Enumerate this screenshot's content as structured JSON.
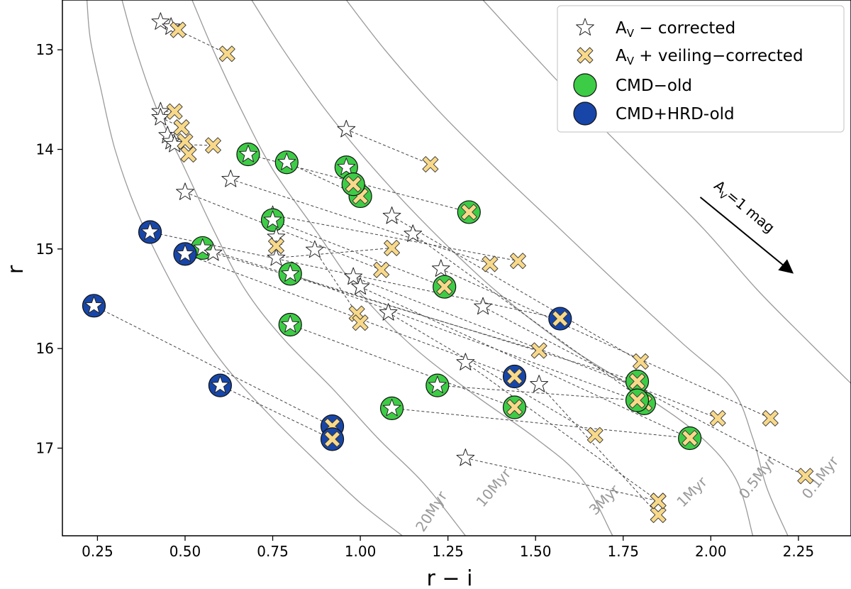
{
  "chart_data": {
    "type": "scatter",
    "xlabel": "r − i",
    "ylabel": "r",
    "xlim": [
      0.15,
      2.4
    ],
    "ylim": [
      17.88,
      12.5
    ],
    "xticks": [
      "0.25",
      "0.50",
      "0.75",
      "1.00",
      "1.25",
      "1.50",
      "1.75",
      "2.00",
      "2.25"
    ],
    "yticks": [
      "13",
      "14",
      "15",
      "16",
      "17"
    ],
    "colors": {
      "star_fill": "#ffffff",
      "veiling": "#f8d98a",
      "cmd_old": "#3dcc45",
      "cmd_hrd_old": "#1746a8",
      "isochrone": "#9a9a9a",
      "connector": "#444444"
    },
    "legend": {
      "position": "top-right",
      "entries": [
        {
          "key": "star",
          "prefix": "A",
          "sub": "V",
          "suffix": " − corrected"
        },
        {
          "key": "cross",
          "prefix": "A",
          "sub": "V",
          "suffix": " + veiling−corrected"
        },
        {
          "key": "cmd_old",
          "prefix": "CMD−old",
          "sub": "",
          "suffix": ""
        },
        {
          "key": "cmd_hrd_old",
          "prefix": "CMD+HRD-old",
          "sub": "",
          "suffix": ""
        }
      ]
    },
    "arrow": {
      "prefix": "A",
      "sub": "V",
      "suffix": "=1 mag",
      "from": [
        1.97,
        14.48
      ],
      "to": [
        2.23,
        15.23
      ]
    },
    "isochrones": [
      {
        "label": "20Myr",
        "points": [
          [
            0.22,
            12.5
          ],
          [
            0.23,
            12.9
          ],
          [
            0.26,
            13.4
          ],
          [
            0.3,
            14.0
          ],
          [
            0.36,
            14.6
          ],
          [
            0.44,
            15.2
          ],
          [
            0.52,
            15.7
          ],
          [
            0.62,
            16.2
          ],
          [
            0.75,
            16.7
          ],
          [
            0.88,
            17.15
          ],
          [
            1.0,
            17.55
          ],
          [
            1.12,
            17.88
          ]
        ]
      },
      {
        "label": "10Myr",
        "points": [
          [
            0.32,
            12.5
          ],
          [
            0.36,
            13.0
          ],
          [
            0.42,
            13.6
          ],
          [
            0.5,
            14.2
          ],
          [
            0.58,
            14.8
          ],
          [
            0.67,
            15.4
          ],
          [
            0.78,
            15.9
          ],
          [
            0.92,
            16.4
          ],
          [
            1.05,
            16.9
          ],
          [
            1.18,
            17.35
          ],
          [
            1.3,
            17.88
          ]
        ]
      },
      {
        "label": "3Myr",
        "points": [
          [
            0.52,
            12.5
          ],
          [
            0.58,
            13.0
          ],
          [
            0.66,
            13.6
          ],
          [
            0.75,
            14.2
          ],
          [
            0.87,
            14.8
          ],
          [
            0.99,
            15.4
          ],
          [
            1.14,
            15.95
          ],
          [
            1.32,
            16.45
          ],
          [
            1.5,
            16.9
          ],
          [
            1.63,
            17.3
          ],
          [
            1.72,
            17.88
          ]
        ]
      },
      {
        "label": "1Myr",
        "points": [
          [
            0.69,
            12.5
          ],
          [
            0.78,
            13.0
          ],
          [
            0.9,
            13.6
          ],
          [
            1.04,
            14.2
          ],
          [
            1.2,
            14.8
          ],
          [
            1.38,
            15.4
          ],
          [
            1.58,
            15.95
          ],
          [
            1.78,
            16.4
          ],
          [
            1.96,
            16.85
          ],
          [
            2.07,
            17.3
          ],
          [
            2.12,
            17.88
          ]
        ]
      },
      {
        "label": "0.5Myr",
        "points": [
          [
            0.96,
            12.5
          ],
          [
            1.07,
            13.0
          ],
          [
            1.22,
            13.6
          ],
          [
            1.39,
            14.2
          ],
          [
            1.57,
            14.8
          ],
          [
            1.75,
            15.4
          ],
          [
            1.92,
            15.95
          ],
          [
            2.06,
            16.4
          ],
          [
            2.12,
            16.9
          ],
          [
            2.16,
            17.4
          ],
          [
            2.22,
            17.88
          ]
        ]
      },
      {
        "label": "0.1Myr",
        "points": [
          [
            1.35,
            12.5
          ],
          [
            1.48,
            13.0
          ],
          [
            1.64,
            13.6
          ],
          [
            1.81,
            14.2
          ],
          [
            1.98,
            14.8
          ],
          [
            2.13,
            15.4
          ],
          [
            2.27,
            15.9
          ],
          [
            2.4,
            16.35
          ]
        ]
      }
    ],
    "isochrone_labels": [
      {
        "text": "20Myr",
        "x": 1.18,
        "y": 17.85,
        "rot": -57
      },
      {
        "text": "10Myr",
        "x": 1.35,
        "y": 17.6,
        "rot": -50
      },
      {
        "text": "3Myr",
        "x": 1.67,
        "y": 17.68,
        "rot": -45
      },
      {
        "text": "1Myr",
        "x": 1.92,
        "y": 17.6,
        "rot": -45
      },
      {
        "text": "0.5Myr",
        "x": 2.1,
        "y": 17.52,
        "rot": -52
      },
      {
        "text": "0.1Myr",
        "x": 2.28,
        "y": 17.52,
        "rot": -52
      }
    ],
    "stars": [
      {
        "sx": 0.43,
        "sy": 12.72,
        "cx": 0.48,
        "cy": 12.8,
        "c": "none"
      },
      {
        "sx": 0.46,
        "sy": 12.77,
        "cx": 0.62,
        "cy": 13.04,
        "c": "none"
      },
      {
        "sx": 0.43,
        "sy": 13.62,
        "cx": 0.47,
        "cy": 13.62,
        "c": "none"
      },
      {
        "sx": 0.43,
        "sy": 13.68,
        "cx": 0.49,
        "cy": 13.78,
        "c": "none"
      },
      {
        "sx": 0.45,
        "sy": 13.86,
        "cx": 0.5,
        "cy": 13.92,
        "c": "none"
      },
      {
        "sx": 0.46,
        "sy": 13.92,
        "cx": 0.51,
        "cy": 14.05,
        "c": "none"
      },
      {
        "sx": 0.47,
        "sy": 13.95,
        "cx": 0.58,
        "cy": 13.96,
        "c": "none"
      },
      {
        "sx": 0.96,
        "sy": 13.8,
        "cx": 1.2,
        "cy": 14.15,
        "c": "none"
      },
      {
        "sx": 0.68,
        "sy": 14.05,
        "cx": 1.31,
        "cy": 14.63,
        "c": "green"
      },
      {
        "sx": 0.79,
        "sy": 14.13,
        "cx": 1.0,
        "cy": 14.47,
        "c": "green"
      },
      {
        "sx": 0.96,
        "sy": 14.18,
        "cx": 0.98,
        "cy": 14.35,
        "c": "green"
      },
      {
        "sx": 0.63,
        "sy": 14.3,
        "cx": 1.37,
        "cy": 15.15,
        "c": "none"
      },
      {
        "sx": 0.5,
        "sy": 14.43,
        "cx": 1.06,
        "cy": 15.21,
        "c": "none"
      },
      {
        "sx": 0.75,
        "sy": 14.66,
        "cx": 1.45,
        "cy": 15.12,
        "c": "none"
      },
      {
        "sx": 0.75,
        "sy": 14.71,
        "cx": 1.24,
        "cy": 15.38,
        "c": "green"
      },
      {
        "sx": 1.09,
        "sy": 14.67,
        "cx": 1.8,
        "cy": 16.13,
        "c": "none"
      },
      {
        "sx": 0.76,
        "sy": 14.88,
        "cx": 0.76,
        "cy": 14.97,
        "c": "none"
      },
      {
        "sx": 0.76,
        "sy": 15.09,
        "cx": 1.09,
        "cy": 14.99,
        "c": "none"
      },
      {
        "sx": 0.87,
        "sy": 15.01,
        "cx": 0.99,
        "cy": 15.65,
        "c": "none"
      },
      {
        "sx": 1.15,
        "sy": 14.85,
        "cx": 1.8,
        "cy": 16.5,
        "c": "none"
      },
      {
        "sx": 0.55,
        "sy": 14.99,
        "cx": 1.79,
        "cy": 16.33,
        "c": "green"
      },
      {
        "sx": 0.58,
        "sy": 15.04,
        "cx": 1.51,
        "cy": 16.02,
        "c": "none"
      },
      {
        "sx": 0.5,
        "sy": 15.05,
        "cx": 1.44,
        "cy": 16.28,
        "c": "blue"
      },
      {
        "sx": 0.4,
        "sy": 14.83,
        "cx": 1.57,
        "cy": 15.7,
        "c": "blue"
      },
      {
        "sx": 1.23,
        "sy": 15.2,
        "cx": 2.17,
        "cy": 16.7,
        "c": "none"
      },
      {
        "sx": 0.8,
        "sy": 15.25,
        "cx": 1.81,
        "cy": 16.55,
        "c": "green"
      },
      {
        "sx": 0.98,
        "sy": 15.28,
        "cx": 2.02,
        "cy": 16.7,
        "c": "none"
      },
      {
        "sx": 1.0,
        "sy": 15.38,
        "cx": 1.94,
        "cy": 16.9,
        "c": "none"
      },
      {
        "sx": 1.35,
        "sy": 15.58,
        "cx": 2.27,
        "cy": 17.28,
        "c": "none"
      },
      {
        "sx": 0.24,
        "sy": 15.57,
        "cx": 0.92,
        "cy": 16.78,
        "c": "blue"
      },
      {
        "sx": 1.08,
        "sy": 15.64,
        "cx": 1.67,
        "cy": 16.87,
        "c": "none"
      },
      {
        "sx": 0.8,
        "sy": 15.76,
        "cx": 1.44,
        "cy": 16.59,
        "c": "green"
      },
      {
        "sx": 1.3,
        "sy": 16.14,
        "cx": 1.85,
        "cy": 17.53,
        "c": "none"
      },
      {
        "sx": 1.51,
        "sy": 16.36,
        "cx": 1.85,
        "cy": 17.67,
        "c": "none"
      },
      {
        "sx": 0.6,
        "sy": 16.37,
        "cx": 0.92,
        "cy": 16.91,
        "c": "blue"
      },
      {
        "sx": 1.22,
        "sy": 16.37,
        "cx": 1.79,
        "cy": 16.52,
        "c": "green"
      },
      {
        "sx": 1.09,
        "sy": 16.6,
        "cx": 1.94,
        "cy": 16.9,
        "c": "green"
      },
      {
        "sx": 1.3,
        "sy": 17.1,
        "cx": 1.85,
        "cy": 17.53,
        "c": "none"
      }
    ],
    "extra_crosses": [
      {
        "x": 1.0,
        "y": 15.74,
        "c": "none"
      }
    ]
  }
}
